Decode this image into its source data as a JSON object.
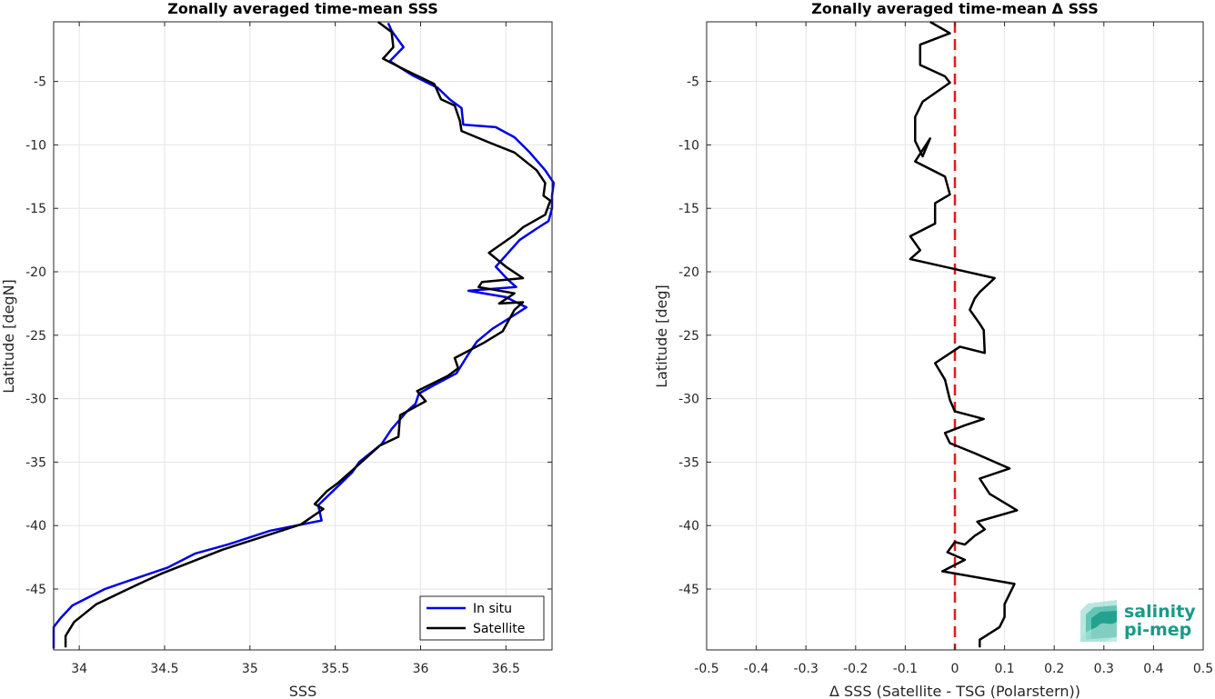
{
  "chart_data": [
    {
      "type": "line",
      "title": "Zonally averaged time-mean SSS",
      "xlabel": "SSS",
      "ylabel": "Latitude [degN]",
      "xlim": [
        33.85,
        36.77
      ],
      "ylim": [
        -49.8,
        -0.3
      ],
      "xticks": [
        34,
        34.5,
        35,
        35.5,
        36,
        36.5
      ],
      "xtick_labels": [
        "34",
        "34.5",
        "35",
        "35.5",
        "36",
        "36.5"
      ],
      "yticks": [
        -5,
        -10,
        -15,
        -20,
        -25,
        -30,
        -35,
        -40,
        -45
      ],
      "ytick_labels": [
        "-5",
        "-10",
        "-15",
        "-20",
        "-25",
        "-30",
        "-35",
        "-40",
        "-45"
      ],
      "grid": true,
      "legend_position": "bottom-right",
      "series": [
        {
          "name": "In situ",
          "color": "#0000e6",
          "points": [
            [
              35.81,
              -0.4
            ],
            [
              35.83,
              -1.0
            ],
            [
              35.9,
              -2.3
            ],
            [
              35.82,
              -3.4
            ],
            [
              35.95,
              -4.5
            ],
            [
              36.1,
              -5.5
            ],
            [
              36.17,
              -6.4
            ],
            [
              36.24,
              -7.1
            ],
            [
              36.25,
              -8.4
            ],
            [
              36.44,
              -8.6
            ],
            [
              36.55,
              -9.4
            ],
            [
              36.64,
              -10.6
            ],
            [
              36.73,
              -12.0
            ],
            [
              36.78,
              -13.0
            ],
            [
              36.77,
              -14.0
            ],
            [
              36.77,
              -15.0
            ],
            [
              36.75,
              -16.0
            ],
            [
              36.68,
              -16.6
            ],
            [
              36.58,
              -17.5
            ],
            [
              36.5,
              -18.7
            ],
            [
              36.44,
              -19.6
            ],
            [
              36.51,
              -20.6
            ],
            [
              36.56,
              -21.2
            ],
            [
              36.28,
              -21.5
            ],
            [
              36.5,
              -22.0
            ],
            [
              36.62,
              -22.8
            ],
            [
              36.55,
              -23.4
            ],
            [
              36.42,
              -24.5
            ],
            [
              36.33,
              -25.5
            ],
            [
              36.28,
              -26.5
            ],
            [
              36.21,
              -28.0
            ],
            [
              36.07,
              -29.0
            ],
            [
              35.99,
              -29.6
            ],
            [
              35.97,
              -30.4
            ],
            [
              35.92,
              -31.0
            ],
            [
              35.83,
              -32.4
            ],
            [
              35.77,
              -33.6
            ],
            [
              35.64,
              -35.0
            ],
            [
              35.6,
              -35.8
            ],
            [
              35.5,
              -37.1
            ],
            [
              35.4,
              -38.4
            ],
            [
              35.42,
              -39.6
            ],
            [
              35.12,
              -40.4
            ],
            [
              34.87,
              -41.5
            ],
            [
              34.68,
              -42.2
            ],
            [
              34.52,
              -43.3
            ],
            [
              34.28,
              -44.4
            ],
            [
              34.15,
              -45.0
            ],
            [
              33.96,
              -46.3
            ],
            [
              33.89,
              -47.3
            ],
            [
              33.85,
              -48.0
            ],
            [
              33.85,
              -49.0
            ],
            [
              33.85,
              -49.7
            ]
          ]
        },
        {
          "name": "Satellite",
          "color": "#000000",
          "points": [
            [
              35.75,
              -0.3
            ],
            [
              35.83,
              -1.1
            ],
            [
              35.84,
              -2.3
            ],
            [
              35.78,
              -3.2
            ],
            [
              35.91,
              -4.1
            ],
            [
              36.08,
              -5.2
            ],
            [
              36.12,
              -6.4
            ],
            [
              36.2,
              -6.9
            ],
            [
              36.23,
              -8.1
            ],
            [
              36.24,
              -8.9
            ],
            [
              36.4,
              -9.8
            ],
            [
              36.55,
              -10.6
            ],
            [
              36.68,
              -12.0
            ],
            [
              36.73,
              -13.0
            ],
            [
              36.72,
              -14.0
            ],
            [
              36.76,
              -14.4
            ],
            [
              36.73,
              -15.5
            ],
            [
              36.6,
              -16.5
            ],
            [
              36.55,
              -17.1
            ],
            [
              36.4,
              -18.5
            ],
            [
              36.5,
              -19.6
            ],
            [
              36.6,
              -20.5
            ],
            [
              36.36,
              -20.8
            ],
            [
              36.34,
              -21.2
            ],
            [
              36.55,
              -21.7
            ],
            [
              36.46,
              -22.5
            ],
            [
              36.6,
              -22.4
            ],
            [
              36.55,
              -23.0
            ],
            [
              36.48,
              -24.7
            ],
            [
              36.37,
              -25.6
            ],
            [
              36.2,
              -26.8
            ],
            [
              36.22,
              -27.6
            ],
            [
              36.16,
              -28.2
            ],
            [
              35.98,
              -29.4
            ],
            [
              36.03,
              -30.2
            ],
            [
              35.88,
              -31.3
            ],
            [
              35.87,
              -33.0
            ],
            [
              35.76,
              -33.7
            ],
            [
              35.62,
              -35.4
            ],
            [
              35.52,
              -36.6
            ],
            [
              35.45,
              -37.3
            ],
            [
              35.38,
              -38.3
            ],
            [
              35.43,
              -38.7
            ],
            [
              35.3,
              -39.9
            ],
            [
              35.07,
              -40.9
            ],
            [
              34.84,
              -41.9
            ],
            [
              34.48,
              -43.8
            ],
            [
              34.35,
              -44.6
            ],
            [
              34.1,
              -46.2
            ],
            [
              33.97,
              -47.6
            ],
            [
              33.92,
              -48.7
            ],
            [
              33.92,
              -49.6
            ]
          ]
        }
      ]
    },
    {
      "type": "line",
      "title": "Zonally averaged time-mean Δ SSS",
      "xlabel": "Δ SSS (Satellite - TSG (Polarstern))",
      "ylabel": "Latitude [deg]",
      "xlim": [
        -0.5,
        0.5
      ],
      "ylim": [
        -49.8,
        -0.3
      ],
      "xticks": [
        -0.5,
        -0.4,
        -0.3,
        -0.2,
        -0.1,
        0,
        0.1,
        0.2,
        0.3,
        0.4,
        0.5
      ],
      "xtick_labels": [
        "-0.5",
        "-0.4",
        "-0.3",
        "-0.2",
        "-0.1",
        "0",
        "0.1",
        "0.2",
        "0.3",
        "0.4",
        "0.5"
      ],
      "yticks": [
        -5,
        -10,
        -15,
        -20,
        -25,
        -30,
        -35,
        -40,
        -45
      ],
      "ytick_labels": [
        "-5",
        "-10",
        "-15",
        "-20",
        "-25",
        "-30",
        "-35",
        "-40",
        "-45"
      ],
      "grid": true,
      "reference_line": {
        "x": 0,
        "color": "#e61919",
        "style": "dashed"
      },
      "series": [
        {
          "color": "#000000",
          "points": [
            [
              -0.05,
              -0.3
            ],
            [
              -0.01,
              -1.2
            ],
            [
              -0.07,
              -2.1
            ],
            [
              -0.07,
              -3.7
            ],
            [
              -0.02,
              -4.6
            ],
            [
              -0.01,
              -5.1
            ],
            [
              -0.065,
              -6.6
            ],
            [
              -0.08,
              -7.8
            ],
            [
              -0.08,
              -9.7
            ],
            [
              -0.065,
              -10.9
            ],
            [
              -0.05,
              -9.5
            ],
            [
              -0.08,
              -11.3
            ],
            [
              -0.02,
              -12.5
            ],
            [
              -0.01,
              -13.9
            ],
            [
              -0.04,
              -14.6
            ],
            [
              -0.04,
              -16.2
            ],
            [
              -0.09,
              -17.2
            ],
            [
              -0.07,
              -18.3
            ],
            [
              -0.09,
              -19.0
            ],
            [
              -0.01,
              -19.7
            ],
            [
              0.08,
              -20.5
            ],
            [
              0.05,
              -21.6
            ],
            [
              0.04,
              -22.1
            ],
            [
              0.03,
              -23.0
            ],
            [
              0.05,
              -24.1
            ],
            [
              0.058,
              -24.6
            ],
            [
              0.06,
              -26.4
            ],
            [
              0.01,
              -25.9
            ],
            [
              -0.04,
              -27.2
            ],
            [
              -0.02,
              -28.5
            ],
            [
              -0.01,
              -30.1
            ],
            [
              0.0,
              -31.0
            ],
            [
              0.058,
              -31.6
            ],
            [
              0.02,
              -32.1
            ],
            [
              -0.02,
              -32.7
            ],
            [
              -0.01,
              -33.5
            ],
            [
              0.04,
              -34.3
            ],
            [
              0.11,
              -35.5
            ],
            [
              0.05,
              -36.3
            ],
            [
              0.07,
              -37.5
            ],
            [
              0.125,
              -38.8
            ],
            [
              0.045,
              -39.7
            ],
            [
              0.06,
              -40.3
            ],
            [
              0.04,
              -40.8
            ],
            [
              0.02,
              -41.5
            ],
            [
              0.0,
              -41.3
            ],
            [
              -0.015,
              -42.1
            ],
            [
              0.02,
              -42.7
            ],
            [
              -0.025,
              -43.6
            ],
            [
              0.12,
              -44.6
            ],
            [
              0.1,
              -46.2
            ],
            [
              0.1,
              -47.2
            ],
            [
              0.09,
              -48.0
            ],
            [
              0.05,
              -49.0
            ],
            [
              0.05,
              -49.6
            ]
          ]
        }
      ]
    }
  ],
  "legend": {
    "items": [
      "In situ",
      "Satellite"
    ]
  },
  "logo": {
    "line1": "salinity",
    "line2": "pi-mep",
    "color": "#1a9a8a"
  }
}
